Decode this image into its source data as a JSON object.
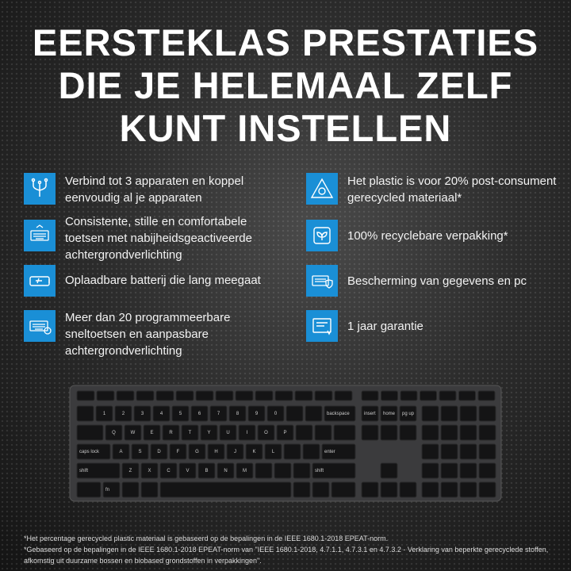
{
  "header": {
    "title_lines": [
      "EERSTEKLAS PRESTATIES",
      "DIE JE HELEMAAL ZELF",
      "KUNT INSTELLEN"
    ]
  },
  "features_left": [
    "Verbind tot 3 apparaten en koppel eenvoudig al je apparaten",
    "Consistente, stille en comfortabele toetsen met nabijheidsgeactiveerde achtergrondverlichting",
    "Oplaadbare batterij die lang meegaat",
    "Meer dan 20 programmeerbare sneltoetsen en aanpasbare achtergrondverlichting"
  ],
  "features_right": [
    "Het plastic is voor 20% post-consument gerecycled materiaal*",
    "100% recyclebare verpakking*",
    "Bescherming van gegevens en pc",
    "1 jaar garantie"
  ],
  "keyboard": {
    "number_row": [
      "1",
      "2",
      "3",
      "4",
      "5",
      "6",
      "7",
      "8",
      "9",
      "0",
      "backspace"
    ],
    "top_row": [
      "Q",
      "W",
      "E",
      "R",
      "T",
      "Y",
      "U",
      "I",
      "O",
      "P"
    ],
    "home_row": [
      "caps lock",
      "A",
      "S",
      "D",
      "F",
      "G",
      "H",
      "J",
      "K",
      "L",
      "enter"
    ],
    "bottom_row": [
      "shift",
      "Z",
      "X",
      "C",
      "V",
      "B",
      "N",
      "M",
      "shift"
    ],
    "space_row": [
      "fn"
    ],
    "nav": [
      "insert",
      "home",
      "pg up"
    ]
  },
  "footnotes": [
    "*Het percentage gerecycled plastic materiaal is gebaseerd op de bepalingen in de IEEE 1680.1-2018 EPEAT-norm.",
    "*Gebaseerd op de bepalingen in de IEEE 1680.1-2018 EPEAT-norm van \"IEEE 1680.1-2018, 4.7.1.1, 4.7.3.1 en 4.7.3.2 - Verklaring van beperkte gerecyclede stoffen, afkomstig uit duurzame bossen en biobased grondstoffen in verpakkingen\"."
  ]
}
